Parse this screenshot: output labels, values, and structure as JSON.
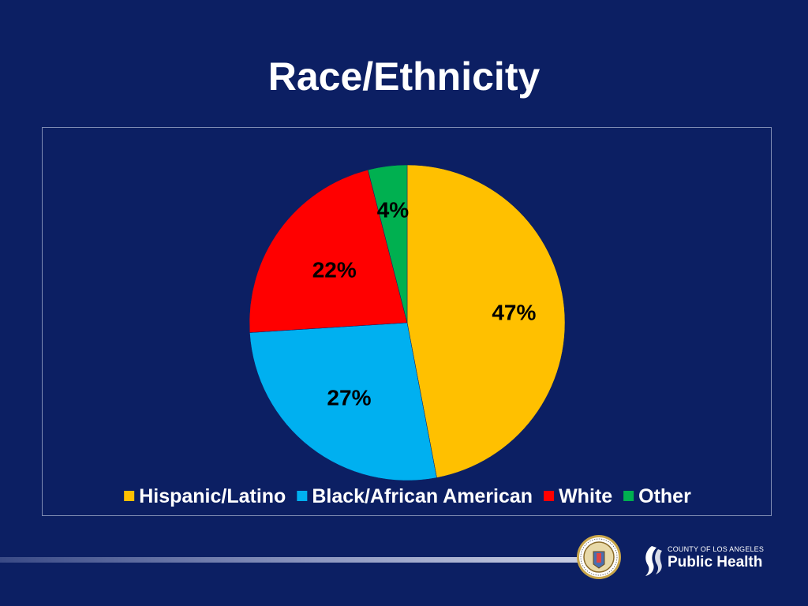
{
  "slide": {
    "title": "Race/Ethnicity"
  },
  "chart_data": {
    "type": "pie",
    "categories": [
      "Hispanic/Latino",
      "Black/African American",
      "White",
      "Other"
    ],
    "values": [
      47,
      27,
      22,
      4
    ],
    "data_labels": [
      "47%",
      "27%",
      "22%",
      "4%"
    ],
    "colors": [
      "#ffc000",
      "#00b0f0",
      "#ff0000",
      "#00b050"
    ],
    "legend_position": "bottom",
    "start_angle": "12 o'clock",
    "direction": "clockwise"
  },
  "footer": {
    "logo_county": "COUNTY OF LOS ANGELES",
    "logo_name": "Public Health",
    "seal_icon": "county-seal-icon",
    "logo_icon": "public-health-logo-icon"
  }
}
